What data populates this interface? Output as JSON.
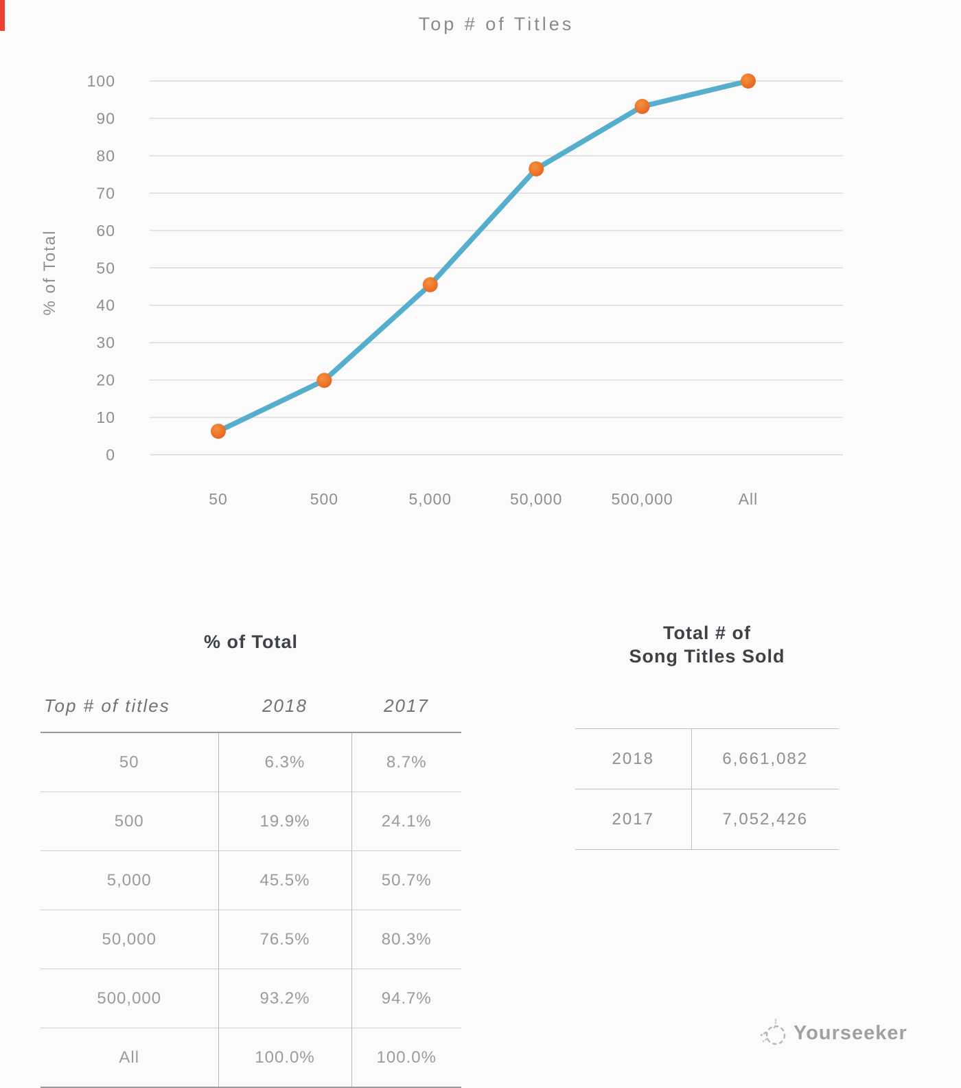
{
  "colors": {
    "background": "#fbfbfb",
    "line": "#56aecd",
    "marker_core": "#e4611b",
    "marker_edge": "#f5913e",
    "grid": "#d9d9d9",
    "axis_text": "#8f8f8f",
    "red_bar": "#ee3f34"
  },
  "chart_data": {
    "type": "line",
    "title": "Top # of Titles",
    "xlabel": "",
    "ylabel": "% of Total",
    "categories": [
      "50",
      "500",
      "5,000",
      "50,000",
      "500,000",
      "All"
    ],
    "series": [
      {
        "name": "2018",
        "values": [
          6.3,
          19.9,
          45.5,
          76.5,
          93.2,
          100.0
        ]
      }
    ],
    "ylim": [
      0,
      100
    ],
    "yticks": [
      100,
      90,
      80,
      70,
      60,
      50,
      40,
      30,
      20,
      10,
      0
    ],
    "grid": "horizontal",
    "legend": "none"
  },
  "left_table": {
    "title": "% of Total",
    "headers": [
      "Top # of titles",
      "2018",
      "2017"
    ],
    "rows": [
      [
        "50",
        "6.3%",
        "8.7%"
      ],
      [
        "500",
        "19.9%",
        "24.1%"
      ],
      [
        "5,000",
        "45.5%",
        "50.7%"
      ],
      [
        "50,000",
        "76.5%",
        "80.3%"
      ],
      [
        "500,000",
        "93.2%",
        "94.7%"
      ],
      [
        "All",
        "100.0%",
        "100.0%"
      ]
    ]
  },
  "right_table": {
    "title_line1": "Total # of",
    "title_line2": "Song Titles Sold",
    "rows": [
      [
        "2018",
        "6,661,082"
      ],
      [
        "2017",
        "7,052,426"
      ]
    ]
  },
  "watermark": {
    "icon": "sketch-circle-logo",
    "text": "Yourseeker"
  }
}
